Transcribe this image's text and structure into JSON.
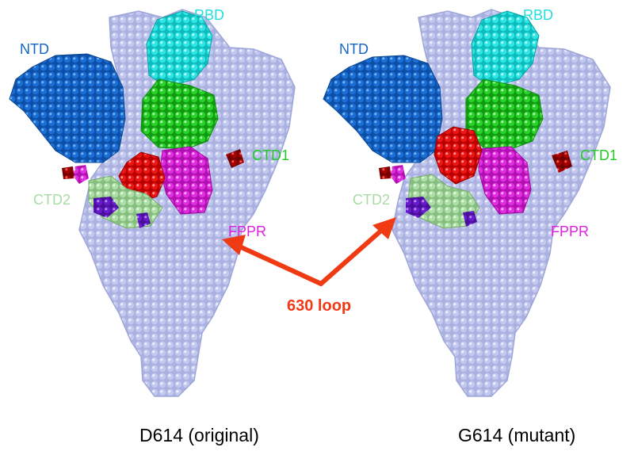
{
  "structures": [
    {
      "caption": "D614 (original)",
      "labels": {
        "ntd": "NTD",
        "rbd": "RBD",
        "ctd1": "CTD1",
        "ctd2": "CTD2",
        "fppr": "FPPR"
      }
    },
    {
      "caption": "G614 (mutant)",
      "labels": {
        "ntd": "NTD",
        "rbd": "RBD",
        "ctd1": "CTD1",
        "ctd2": "CTD2",
        "fppr": "FPPR"
      }
    }
  ],
  "annotation": {
    "label": "630 loop"
  },
  "colors": {
    "body": "#aab1e0",
    "ntd": "#1565c8",
    "rbd": "#22dede",
    "ctd1": "#22cc22",
    "ctd2": "#a9dba3",
    "fppr": "#dd22dd",
    "loop630": "#ee1111",
    "dark_red": "#a80000",
    "violet": "#6a1bcf",
    "arrow": "#f03a14"
  }
}
